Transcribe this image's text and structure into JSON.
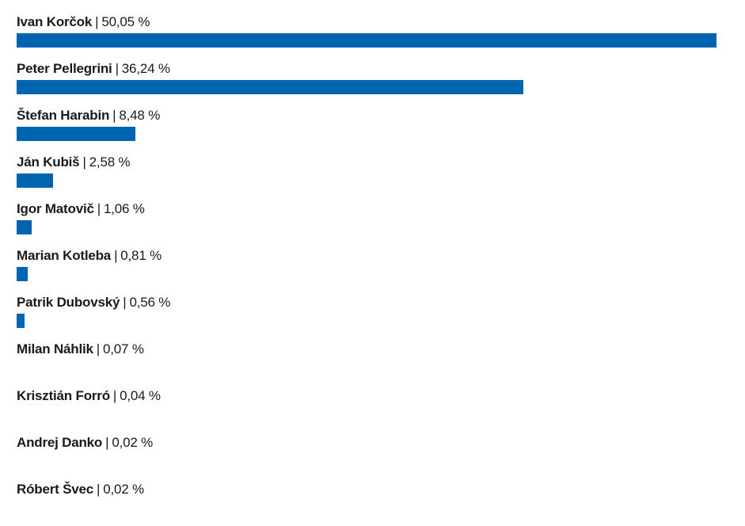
{
  "chart_data": {
    "type": "bar",
    "orientation": "horizontal",
    "categories": [
      "Ivan Korčok",
      "Peter Pellegrini",
      "Štefan Harabin",
      "Ján Kubiš",
      "Igor Matovič",
      "Marian Kotleba",
      "Patrik Dubovský",
      "Milan Náhlik",
      "Krisztián Forró",
      "Andrej Danko",
      "Róbert Švec"
    ],
    "values": [
      50.05,
      36.24,
      8.48,
      2.58,
      1.06,
      0.81,
      0.56,
      0.07,
      0.04,
      0.02,
      0.02
    ],
    "value_labels": [
      "50,05 %",
      "36,24 %",
      "8,48 %",
      "2,58 %",
      "1,06 %",
      "0,81 %",
      "0,56 %",
      "0,07 %",
      "0,04 %",
      "0,02 %",
      "0,02 %"
    ],
    "separator": "|",
    "bar_color": "#0065b1",
    "xlim": [
      0,
      50.05
    ],
    "grid": false,
    "legend": "none"
  }
}
